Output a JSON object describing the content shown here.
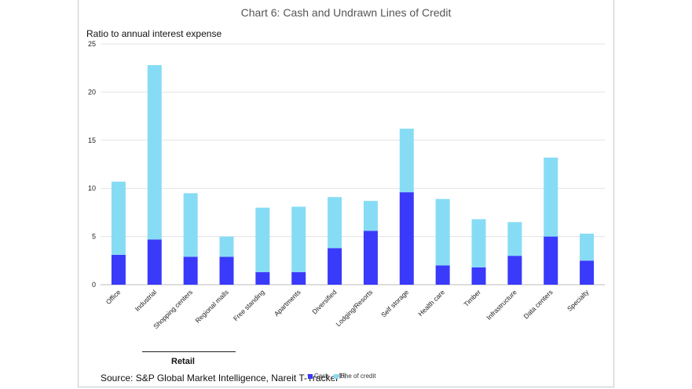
{
  "chart_data": {
    "type": "bar",
    "stacked": true,
    "title": "Chart 6: Cash and Undrawn Lines of Credit",
    "ylabel": "Ratio to annual interest expense",
    "xlabel": "",
    "ylim": [
      0,
      25
    ],
    "yticks": [
      0,
      5,
      10,
      15,
      20,
      25
    ],
    "grid": true,
    "categories": [
      "Office",
      "Industrial",
      "Shopping centers",
      "Regional malls",
      "Free standing",
      "Apartments",
      "Diversified",
      "Lodging/Resorts",
      "Self storage",
      "Health care",
      "Timber",
      "Infrastructure",
      "Data centers",
      "Specialty"
    ],
    "series": [
      {
        "name": "Cash",
        "color": "#3a3afa",
        "values": [
          3.1,
          4.7,
          2.9,
          2.9,
          1.3,
          1.3,
          3.8,
          5.6,
          9.6,
          2.0,
          1.8,
          3.0,
          5.0,
          2.5
        ]
      },
      {
        "name": "Line of credit",
        "color": "#87dcf5",
        "values": [
          7.6,
          18.1,
          6.6,
          2.1,
          6.7,
          6.8,
          5.3,
          3.1,
          6.6,
          6.9,
          5.0,
          3.5,
          8.2,
          2.8
        ]
      }
    ],
    "group_annotation": "Retail",
    "source": "Source: S&P Global Market Intelligence, Nareit T-Tracker",
    "source_superscript": "(R)"
  }
}
